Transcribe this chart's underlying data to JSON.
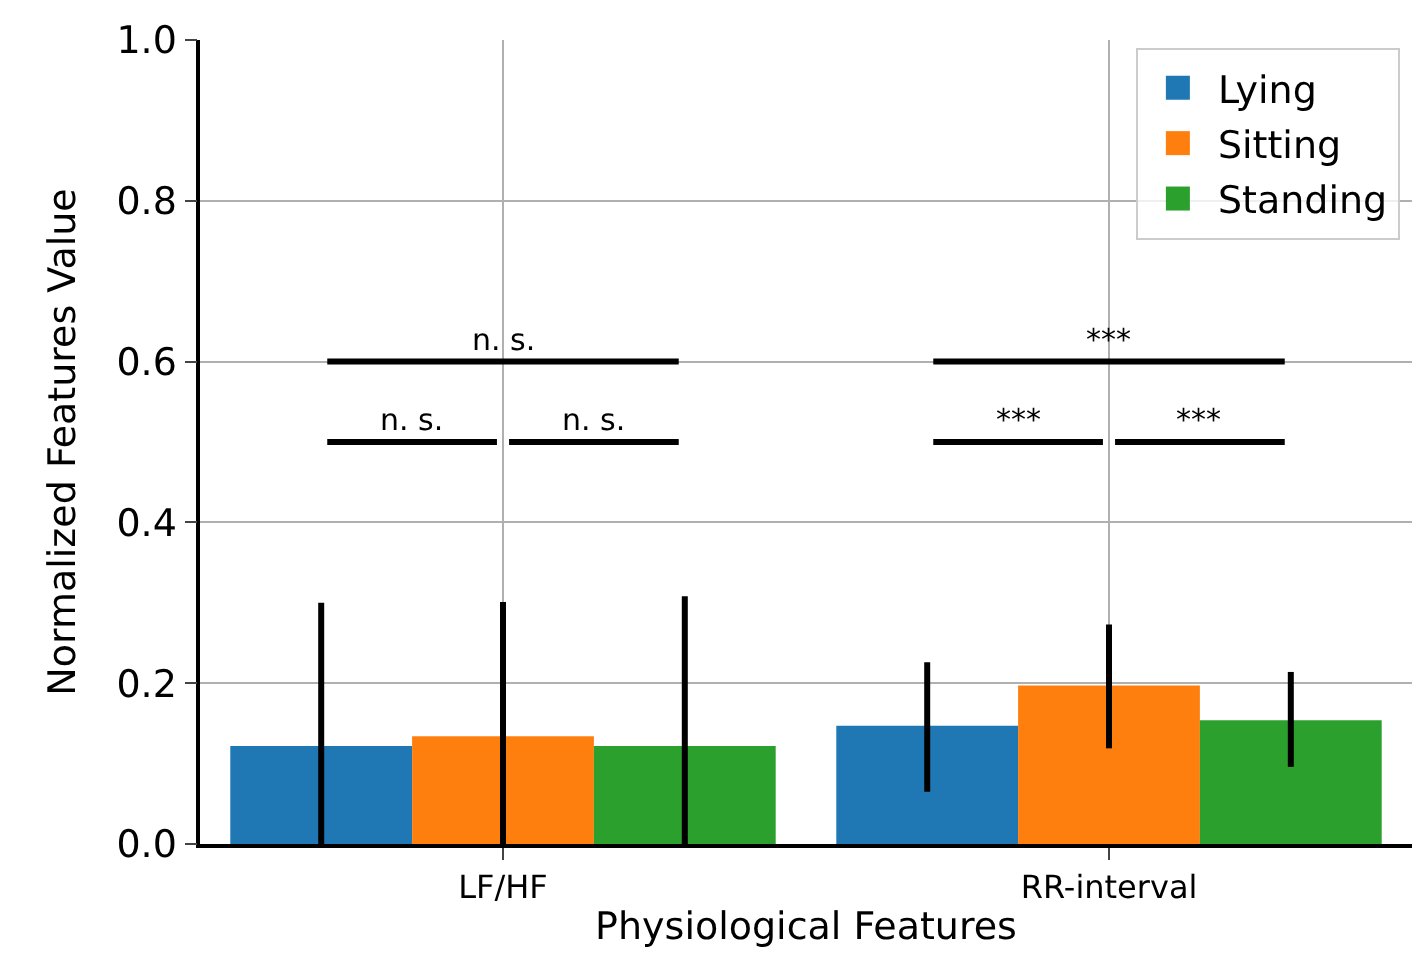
{
  "chart_data": {
    "type": "bar",
    "xlabel": "Physiological Features",
    "ylabel": "Normalized Features Value",
    "categories": [
      "LF/HF",
      "RR-interval"
    ],
    "series": [
      {
        "name": "Lying",
        "color": "#1f77b4",
        "values": [
          0.122,
          0.147
        ],
        "errors": [
          [
            0.0,
            0.3
          ],
          [
            0.065,
            0.226
          ]
        ]
      },
      {
        "name": "Sitting",
        "color": "#ff7f0e",
        "values": [
          0.134,
          0.197
        ],
        "errors": [
          [
            0.0,
            0.301
          ],
          [
            0.119,
            0.273
          ]
        ]
      },
      {
        "name": "Standing",
        "color": "#2ca02c",
        "values": [
          0.122,
          0.154
        ],
        "errors": [
          [
            0.0,
            0.308
          ],
          [
            0.096,
            0.214
          ]
        ]
      }
    ],
    "annotations": [
      "n. s.",
      "n. s.",
      "n. s.",
      "***",
      "***",
      "***"
    ],
    "ylim": [
      0,
      1.0
    ],
    "yticks": [
      {
        "value": 0,
        "label": "0.0"
      },
      0.2,
      0.4,
      0.6,
      0.8,
      {
        "value": 1,
        "label": "1.0"
      }
    ],
    "grid": true,
    "legend": "top right"
  }
}
